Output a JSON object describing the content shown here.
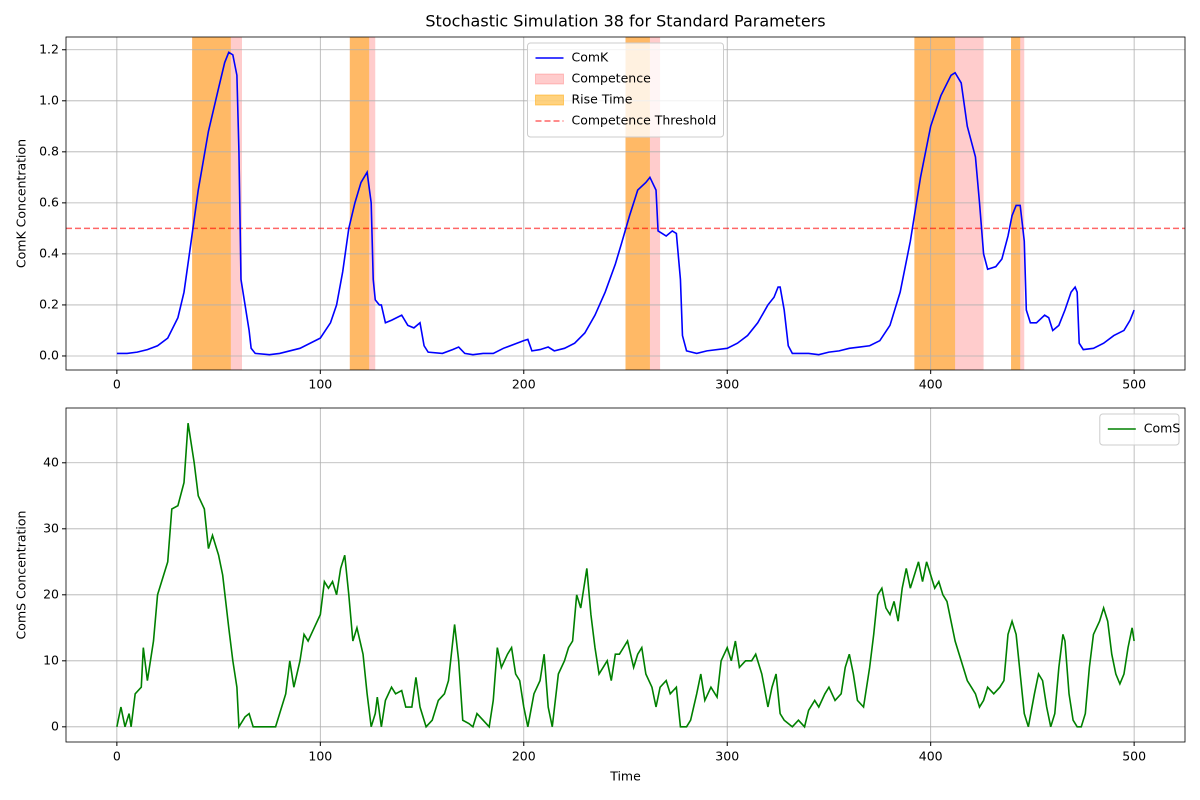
{
  "chart_data": [
    {
      "type": "line",
      "title": "Stochastic Simulation 38 for Standard Parameters",
      "ylabel": "ComK Concentration",
      "x": [
        0,
        5,
        10,
        15,
        20,
        25,
        30,
        33,
        36,
        40,
        45,
        50,
        53,
        55,
        57,
        59,
        60,
        61,
        63,
        65,
        66,
        68,
        75,
        80,
        90,
        100,
        105,
        108,
        111,
        114,
        117,
        120,
        123,
        125,
        126,
        127,
        129,
        130,
        132,
        135,
        140,
        143,
        146,
        149,
        151,
        153,
        160,
        165,
        168,
        171,
        175,
        180,
        185,
        190,
        195,
        200,
        202,
        204,
        208,
        212,
        215,
        220,
        225,
        230,
        235,
        240,
        245,
        248,
        252,
        256,
        260,
        262,
        265,
        266,
        268,
        270,
        273,
        275,
        277,
        278,
        280,
        285,
        290,
        300,
        305,
        310,
        315,
        320,
        323,
        325,
        326,
        328,
        330,
        332,
        340,
        345,
        350,
        355,
        360,
        365,
        370,
        375,
        380,
        385,
        390,
        395,
        400,
        405,
        410,
        412,
        415,
        418,
        422,
        424,
        426,
        428,
        432,
        435,
        438,
        440,
        442,
        444,
        446,
        447,
        449,
        452,
        456,
        458,
        460,
        463,
        466,
        469,
        471,
        472,
        473,
        475,
        480,
        485,
        490,
        495,
        498,
        500
      ],
      "series": [
        {
          "name": "ComK",
          "color": "#0000ff",
          "values": [
            0.01,
            0.01,
            0.015,
            0.025,
            0.04,
            0.07,
            0.15,
            0.25,
            0.42,
            0.65,
            0.88,
            1.05,
            1.15,
            1.19,
            1.18,
            1.1,
            0.8,
            0.3,
            0.2,
            0.1,
            0.03,
            0.01,
            0.005,
            0.01,
            0.03,
            0.07,
            0.13,
            0.2,
            0.33,
            0.5,
            0.6,
            0.68,
            0.72,
            0.6,
            0.3,
            0.22,
            0.2,
            0.2,
            0.13,
            0.14,
            0.16,
            0.12,
            0.11,
            0.13,
            0.04,
            0.015,
            0.01,
            0.025,
            0.035,
            0.01,
            0.005,
            0.01,
            0.01,
            0.03,
            0.045,
            0.06,
            0.065,
            0.02,
            0.025,
            0.035,
            0.02,
            0.03,
            0.05,
            0.09,
            0.16,
            0.25,
            0.36,
            0.44,
            0.55,
            0.65,
            0.68,
            0.7,
            0.65,
            0.49,
            0.48,
            0.47,
            0.49,
            0.48,
            0.3,
            0.08,
            0.02,
            0.01,
            0.02,
            0.03,
            0.05,
            0.08,
            0.13,
            0.2,
            0.23,
            0.27,
            0.27,
            0.18,
            0.04,
            0.01,
            0.01,
            0.005,
            0.015,
            0.02,
            0.03,
            0.035,
            0.04,
            0.06,
            0.12,
            0.25,
            0.45,
            0.7,
            0.9,
            1.02,
            1.1,
            1.11,
            1.07,
            0.9,
            0.78,
            0.6,
            0.4,
            0.34,
            0.35,
            0.38,
            0.47,
            0.55,
            0.59,
            0.59,
            0.45,
            0.18,
            0.13,
            0.13,
            0.16,
            0.15,
            0.1,
            0.12,
            0.18,
            0.25,
            0.27,
            0.25,
            0.05,
            0.025,
            0.03,
            0.05,
            0.08,
            0.1,
            0.14,
            0.18
          ]
        }
      ],
      "bands": [
        {
          "name": "Competence",
          "color": "#ff0000",
          "alpha": 0.2,
          "spans": [
            [
              37,
              61.5
            ],
            [
              114.5,
              127
            ],
            [
              250,
              267
            ],
            [
              392,
              426
            ],
            [
              439.5,
              446
            ]
          ]
        },
        {
          "name": "Rise Time",
          "color": "#ffa500",
          "alpha": 0.5,
          "spans": [
            [
              37,
              56
            ],
            [
              114.5,
              124
            ],
            [
              250,
              262
            ],
            [
              392,
              412
            ],
            [
              439.5,
              444
            ]
          ]
        }
      ],
      "threshold": {
        "name": "Competence Threshold",
        "value": 0.5,
        "color": "#ff0000"
      },
      "xlim": [
        -25,
        525
      ],
      "xticks": [
        0,
        100,
        200,
        300,
        400,
        500
      ],
      "ylim": [
        -0.055,
        1.25
      ],
      "yticks": [
        {
          "value": 0,
          "label": "0.0"
        },
        {
          "value": 0.2,
          "label": "0.2"
        },
        {
          "value": 0.4,
          "label": "0.4"
        },
        {
          "value": 0.6,
          "label": "0.6"
        },
        {
          "value": 0.8,
          "label": "0.8"
        },
        {
          "value": 1,
          "label": "1.0"
        },
        {
          "value": 1.2,
          "label": "1.2"
        }
      ],
      "grid": true,
      "legend": "upper center"
    },
    {
      "type": "line",
      "xlabel": "Time",
      "ylabel": "ComS Concentration",
      "x": [
        0,
        2,
        4,
        6,
        7,
        9,
        12,
        13,
        15,
        18,
        20,
        23,
        25,
        27,
        30,
        33,
        35,
        38,
        40,
        43,
        45,
        47,
        50,
        52,
        55,
        57,
        59,
        60,
        63,
        65,
        67,
        70,
        75,
        78,
        80,
        83,
        85,
        87,
        90,
        92,
        94,
        97,
        100,
        102,
        104,
        106,
        108,
        110,
        112,
        114,
        116,
        118,
        121,
        123,
        125,
        127,
        128,
        130,
        132,
        135,
        137,
        140,
        142,
        145,
        147,
        149,
        152,
        155,
        158,
        161,
        163,
        166,
        168,
        170,
        173,
        175,
        177,
        180,
        183,
        185,
        187,
        189,
        192,
        194,
        196,
        198,
        200,
        202,
        205,
        208,
        210,
        212,
        214,
        217,
        220,
        222,
        224,
        226,
        228,
        230,
        231,
        233,
        235,
        237,
        239,
        241,
        243,
        245,
        247,
        249,
        251,
        254,
        256,
        258,
        260,
        263,
        265,
        267,
        270,
        272,
        275,
        277,
        280,
        282,
        285,
        287,
        289,
        292,
        295,
        297,
        300,
        302,
        304,
        306,
        309,
        312,
        314,
        317,
        320,
        322,
        324,
        326,
        328,
        330,
        332,
        335,
        338,
        340,
        343,
        345,
        348,
        350,
        353,
        356,
        358,
        360,
        362,
        364,
        367,
        370,
        372,
        374,
        376,
        378,
        380,
        382,
        384,
        386,
        388,
        390,
        392,
        394,
        396,
        398,
        400,
        402,
        404,
        406,
        408,
        410,
        412,
        414,
        416,
        418,
        420,
        422,
        424,
        426,
        428,
        431,
        434,
        436,
        438,
        440,
        442,
        444,
        446,
        448,
        451,
        453,
        455,
        457,
        459,
        461,
        463,
        465,
        466,
        468,
        470,
        472,
        474,
        476,
        478,
        480,
        483,
        485,
        487,
        489,
        491,
        493,
        495,
        497,
        499,
        500
      ],
      "series": [
        {
          "name": "ComS",
          "color": "#008000",
          "values": [
            0,
            3,
            0,
            2,
            0,
            5,
            6,
            12,
            7,
            13,
            20,
            23,
            25,
            33,
            33.5,
            37,
            46,
            40,
            35,
            33,
            27,
            29,
            26,
            23,
            15,
            10,
            6,
            0,
            1.5,
            2,
            0,
            0,
            0,
            0,
            2,
            5,
            10,
            6,
            10,
            14,
            13,
            15,
            17,
            22,
            21,
            22,
            20,
            24,
            26,
            20,
            13,
            15,
            11,
            5,
            0,
            2,
            4.5,
            0,
            4,
            6,
            5,
            5.5,
            3,
            3,
            7.5,
            3,
            0,
            1,
            4,
            5,
            7,
            15.5,
            10,
            1,
            0.5,
            0,
            2,
            1,
            0,
            4,
            12,
            9,
            11,
            12,
            8,
            7,
            3,
            0,
            5,
            7,
            11,
            3,
            0,
            8,
            10,
            12,
            13,
            20,
            18,
            22,
            24,
            17,
            12,
            8,
            9,
            10,
            7,
            11,
            11,
            12,
            13,
            9,
            11,
            12,
            8,
            6,
            3,
            6,
            7,
            5,
            6,
            0,
            0,
            1,
            5,
            8,
            4,
            6,
            4.5,
            10,
            12,
            10,
            13,
            9,
            10,
            10,
            11,
            8,
            3,
            6,
            8,
            2,
            1,
            0.5,
            0,
            1,
            0,
            2.5,
            4,
            3,
            5,
            6,
            4,
            5,
            9,
            11,
            8,
            4,
            3,
            9,
            14,
            20,
            21,
            18,
            17,
            19,
            16,
            21,
            24,
            21,
            23,
            25,
            22,
            25,
            23,
            21,
            22,
            20,
            19,
            16,
            13,
            11,
            9,
            7,
            6,
            5,
            3,
            4,
            6,
            5,
            6,
            7,
            14,
            16,
            14,
            8,
            2,
            0,
            5,
            8,
            7,
            3,
            0,
            2,
            9,
            14,
            13,
            5,
            1,
            0,
            0,
            2,
            9,
            14,
            16,
            18,
            16,
            11,
            8,
            6.5,
            8,
            12,
            15,
            13
          ]
        }
      ],
      "xlim": [
        -25,
        525
      ],
      "xticks": [
        0,
        100,
        200,
        300,
        400,
        500
      ],
      "ylim": [
        -2.3,
        48.3
      ],
      "yticks": [
        0,
        10,
        20,
        30,
        40
      ],
      "grid": true,
      "legend": "upper right"
    }
  ]
}
